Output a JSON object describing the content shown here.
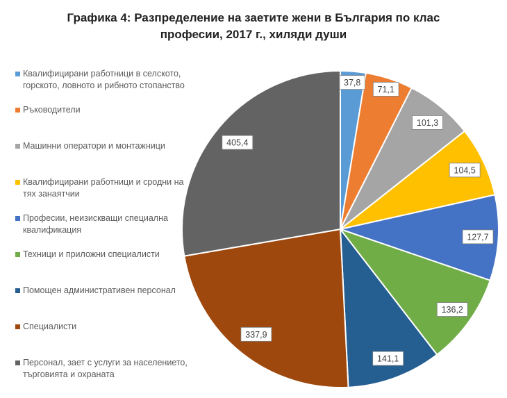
{
  "chart_data": {
    "type": "pie",
    "title_lines": [
      "Графика 4: Разпределение на заетите жени в България по клас",
      "професии, 2017 г., хиляди души"
    ],
    "categories": [
      "Квалифицирани работници в селското, горското, ловното и рибното стопанство",
      "Ръководители",
      "Машинни оператори и монтажници",
      "Квалифицирани работници и сродни на тях занаятчии",
      "Професии, неизискващи специална квалификация",
      "Техници и приложни специалисти",
      "Помощен административен персонал",
      "Специалисти",
      "Персонал, зает с услуги за населението, търговията и охраната"
    ],
    "values": [
      37.8,
      71.1,
      101.3,
      104.5,
      127.7,
      136.2,
      141.1,
      337.9,
      405.4
    ],
    "labels": [
      "37,8",
      "71,1",
      "101,3",
      "104,5",
      "127,7",
      "136,2",
      "141,1",
      "337,9",
      "405,4"
    ],
    "colors": [
      "#5B9BD5",
      "#ED7D31",
      "#A5A5A5",
      "#FFC000",
      "#4472C4",
      "#70AD47",
      "#255E91",
      "#9E480E",
      "#636363"
    ],
    "legend_position": "left"
  }
}
